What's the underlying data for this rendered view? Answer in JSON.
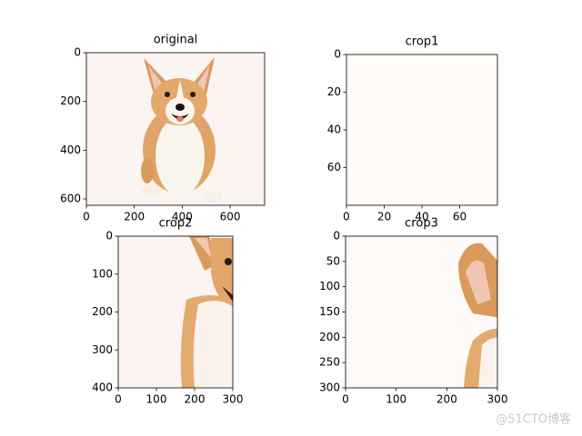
{
  "chart_data": [
    {
      "type": "image",
      "title": "original",
      "xlim": [
        0,
        744
      ],
      "ylim": [
        626,
        0
      ],
      "xticks": [
        0,
        200,
        400,
        600
      ],
      "yticks": [
        0,
        200,
        400,
        600
      ]
    },
    {
      "type": "image",
      "title": "crop1",
      "xlim": [
        0,
        80
      ],
      "ylim": [
        80,
        0
      ],
      "xticks": [
        0,
        20,
        40,
        60
      ],
      "yticks": [
        0,
        20,
        40,
        60
      ]
    },
    {
      "type": "image",
      "title": "crop2",
      "xlim": [
        0,
        300
      ],
      "ylim": [
        400,
        0
      ],
      "xticks": [
        0,
        100,
        200,
        300
      ],
      "yticks": [
        0,
        100,
        200,
        300,
        400
      ]
    },
    {
      "type": "image",
      "title": "crop3",
      "xlim": [
        0,
        300
      ],
      "ylim": [
        300,
        0
      ],
      "xticks": [
        0,
        100,
        200,
        300
      ],
      "yticks": [
        0,
        50,
        100,
        150,
        200,
        250,
        300
      ]
    }
  ],
  "watermark": "@51CTO博客"
}
